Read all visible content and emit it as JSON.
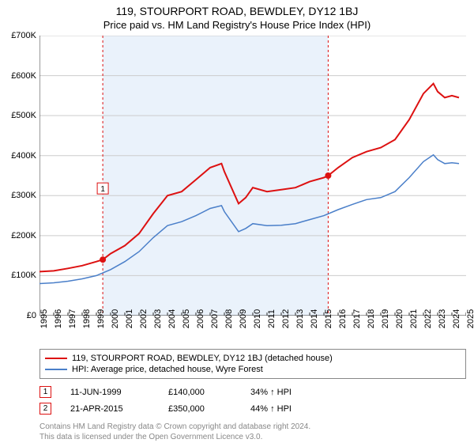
{
  "title": "119, STOURPORT ROAD, BEWDLEY, DY12 1BJ",
  "subtitle": "Price paid vs. HM Land Registry's House Price Index (HPI)",
  "chart": {
    "type": "line",
    "ylim": [
      0,
      700000
    ],
    "ytick_step": 100000,
    "ylabel_prefix": "£",
    "ylabel_suffix": "K",
    "x_start": 1995,
    "x_end": 2025,
    "xtick_step": 1,
    "background_color": "#ffffff",
    "grid_color": "#cccccc",
    "shaded_band": {
      "from_year": 1999.45,
      "to_year": 2015.3,
      "color": "#eaf2fb"
    },
    "series": [
      {
        "name": "property",
        "label": "119, STOURPORT ROAD, BEWDLEY, DY12 1BJ (detached house)",
        "color": "#dd1111",
        "line_width": 2,
        "data": [
          {
            "x": 1995,
            "y": 110000
          },
          {
            "x": 1996,
            "y": 112000
          },
          {
            "x": 1997,
            "y": 118000
          },
          {
            "x": 1998,
            "y": 125000
          },
          {
            "x": 1999,
            "y": 135000
          },
          {
            "x": 1999.45,
            "y": 140000
          },
          {
            "x": 2000,
            "y": 155000
          },
          {
            "x": 2001,
            "y": 175000
          },
          {
            "x": 2002,
            "y": 205000
          },
          {
            "x": 2003,
            "y": 255000
          },
          {
            "x": 2004,
            "y": 300000
          },
          {
            "x": 2005,
            "y": 310000
          },
          {
            "x": 2006,
            "y": 340000
          },
          {
            "x": 2007,
            "y": 370000
          },
          {
            "x": 2007.8,
            "y": 380000
          },
          {
            "x": 2008,
            "y": 360000
          },
          {
            "x": 2008.5,
            "y": 320000
          },
          {
            "x": 2009,
            "y": 280000
          },
          {
            "x": 2009.5,
            "y": 295000
          },
          {
            "x": 2010,
            "y": 320000
          },
          {
            "x": 2011,
            "y": 310000
          },
          {
            "x": 2012,
            "y": 315000
          },
          {
            "x": 2013,
            "y": 320000
          },
          {
            "x": 2014,
            "y": 335000
          },
          {
            "x": 2015,
            "y": 345000
          },
          {
            "x": 2015.3,
            "y": 350000
          },
          {
            "x": 2016,
            "y": 370000
          },
          {
            "x": 2017,
            "y": 395000
          },
          {
            "x": 2018,
            "y": 410000
          },
          {
            "x": 2019,
            "y": 420000
          },
          {
            "x": 2020,
            "y": 440000
          },
          {
            "x": 2021,
            "y": 490000
          },
          {
            "x": 2022,
            "y": 555000
          },
          {
            "x": 2022.7,
            "y": 580000
          },
          {
            "x": 2023,
            "y": 560000
          },
          {
            "x": 2023.5,
            "y": 545000
          },
          {
            "x": 2024,
            "y": 550000
          },
          {
            "x": 2024.5,
            "y": 545000
          }
        ]
      },
      {
        "name": "hpi",
        "label": "HPI: Average price, detached house, Wyre Forest",
        "color": "#4a7fc9",
        "line_width": 1.5,
        "data": [
          {
            "x": 1995,
            "y": 80000
          },
          {
            "x": 1996,
            "y": 82000
          },
          {
            "x": 1997,
            "y": 86000
          },
          {
            "x": 1998,
            "y": 92000
          },
          {
            "x": 1999,
            "y": 100000
          },
          {
            "x": 2000,
            "y": 115000
          },
          {
            "x": 2001,
            "y": 135000
          },
          {
            "x": 2002,
            "y": 160000
          },
          {
            "x": 2003,
            "y": 195000
          },
          {
            "x": 2004,
            "y": 225000
          },
          {
            "x": 2005,
            "y": 235000
          },
          {
            "x": 2006,
            "y": 250000
          },
          {
            "x": 2007,
            "y": 268000
          },
          {
            "x": 2007.8,
            "y": 275000
          },
          {
            "x": 2008,
            "y": 260000
          },
          {
            "x": 2008.5,
            "y": 235000
          },
          {
            "x": 2009,
            "y": 210000
          },
          {
            "x": 2009.5,
            "y": 218000
          },
          {
            "x": 2010,
            "y": 230000
          },
          {
            "x": 2011,
            "y": 225000
          },
          {
            "x": 2012,
            "y": 226000
          },
          {
            "x": 2013,
            "y": 230000
          },
          {
            "x": 2014,
            "y": 240000
          },
          {
            "x": 2015,
            "y": 250000
          },
          {
            "x": 2016,
            "y": 265000
          },
          {
            "x": 2017,
            "y": 278000
          },
          {
            "x": 2018,
            "y": 290000
          },
          {
            "x": 2019,
            "y": 295000
          },
          {
            "x": 2020,
            "y": 310000
          },
          {
            "x": 2021,
            "y": 345000
          },
          {
            "x": 2022,
            "y": 385000
          },
          {
            "x": 2022.7,
            "y": 402000
          },
          {
            "x": 2023,
            "y": 390000
          },
          {
            "x": 2023.5,
            "y": 380000
          },
          {
            "x": 2024,
            "y": 382000
          },
          {
            "x": 2024.5,
            "y": 380000
          }
        ]
      }
    ],
    "markers": [
      {
        "id": "1",
        "x": 1999.45,
        "y": 140000,
        "label_y_offset": -90,
        "color": "#dd1111"
      },
      {
        "id": "2",
        "x": 2015.3,
        "y": 350000,
        "label_y_offset": -260,
        "color": "#dd1111"
      }
    ]
  },
  "legend": {
    "border_color": "#888888"
  },
  "transactions": [
    {
      "id": "1",
      "date": "11-JUN-1999",
      "price": "£140,000",
      "delta": "34% ↑ HPI",
      "marker_color": "#dd1111"
    },
    {
      "id": "2",
      "date": "21-APR-2015",
      "price": "£350,000",
      "delta": "44% ↑ HPI",
      "marker_color": "#dd1111"
    }
  ],
  "footer": {
    "line1": "Contains HM Land Registry data © Crown copyright and database right 2024.",
    "line2": "This data is licensed under the Open Government Licence v3.0."
  }
}
